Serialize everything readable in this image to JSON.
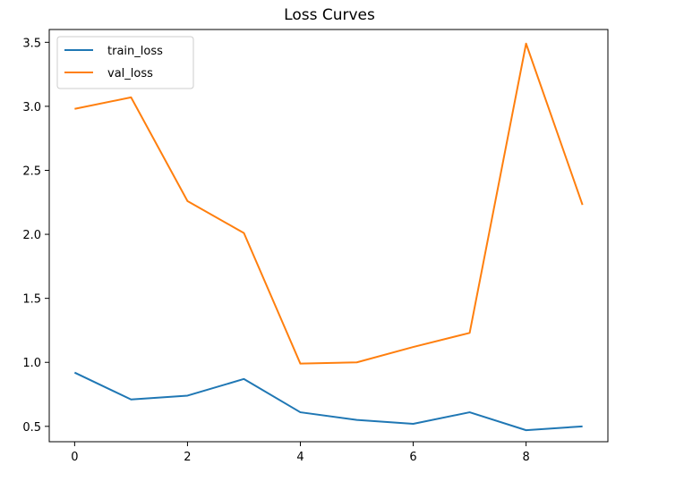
{
  "chart_data": {
    "type": "line",
    "title": "Loss Curves",
    "xlabel": "",
    "ylabel": "",
    "x": [
      0,
      1,
      2,
      3,
      4,
      5,
      6,
      7,
      8,
      9
    ],
    "xlim": [
      -0.45,
      9.45
    ],
    "ylim": [
      0.38,
      3.6
    ],
    "xticks": [
      0,
      2,
      4,
      6,
      8
    ],
    "yticks": [
      0.5,
      1.0,
      1.5,
      2.0,
      2.5,
      3.0,
      3.5
    ],
    "ytick_labels": [
      "0.5",
      "1.0",
      "1.5",
      "2.0",
      "2.5",
      "3.0",
      "3.5"
    ],
    "grid": false,
    "legend_position": "top-left",
    "series": [
      {
        "name": "train_loss",
        "color": "#1f77b4",
        "values": [
          0.92,
          0.71,
          0.74,
          0.87,
          0.61,
          0.55,
          0.52,
          0.61,
          0.47,
          0.5
        ]
      },
      {
        "name": "val_loss",
        "color": "#ff7f0e",
        "values": [
          2.98,
          3.07,
          2.26,
          2.01,
          0.99,
          1.0,
          1.12,
          1.23,
          3.49,
          2.23
        ]
      }
    ]
  }
}
